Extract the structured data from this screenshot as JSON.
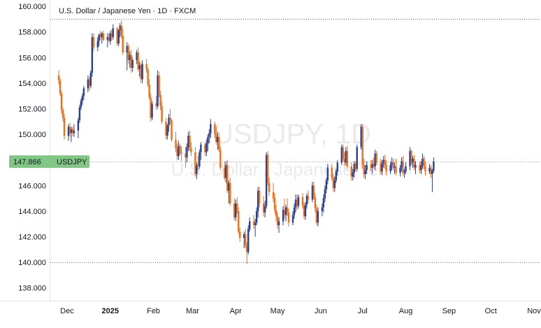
{
  "chart_data": {
    "type": "candlestick",
    "title": "U.S. Dollar / Japanese Yen · 1D · FXCM",
    "watermark_symbol": "USDJPY, 1D",
    "watermark_name": "U.S. Dollar / Japanese Yen",
    "xlabel": "",
    "ylabel": "",
    "ylim": [
      137,
      160.5
    ],
    "xlim": [
      "2024-11-19",
      "2025-11-06"
    ],
    "y_ticks": [
      "160.000",
      "158.000",
      "156.000",
      "154.000",
      "152.000",
      "150.000",
      "148.000",
      "146.000",
      "144.000",
      "142.000",
      "140.000",
      "138.000"
    ],
    "x_ticks": [
      {
        "label": "Dec",
        "date": "2024-12-01",
        "bold": false
      },
      {
        "label": "2025",
        "date": "2025-01-01",
        "bold": true
      },
      {
        "label": "Feb",
        "date": "2025-02-01",
        "bold": false
      },
      {
        "label": "Mar",
        "date": "2025-03-01",
        "bold": false
      },
      {
        "label": "Apr",
        "date": "2025-04-01",
        "bold": false
      },
      {
        "label": "May",
        "date": "2025-05-01",
        "bold": false
      },
      {
        "label": "Jun",
        "date": "2025-06-01",
        "bold": false
      },
      {
        "label": "Jul",
        "date": "2025-07-01",
        "bold": false
      },
      {
        "label": "Aug",
        "date": "2025-08-01",
        "bold": false
      },
      {
        "label": "Sep",
        "date": "2025-09-01",
        "bold": false
      },
      {
        "label": "Oct",
        "date": "2025-10-01",
        "bold": false
      },
      {
        "label": "Nov",
        "date": "2025-11-01",
        "bold": false
      }
    ],
    "grid": "horizontal dotted at 159.0 and 140.0",
    "dotted_levels": [
      159.0,
      140.0
    ],
    "last_price": {
      "label": "USDJPY",
      "value": "147.866",
      "y": 147.866,
      "color": "#81c784"
    },
    "up_color": "#2a3f8f",
    "down_color": "#e8711a",
    "candles": {
      "start": "2024-11-25",
      "values": [
        [
          154.6,
          155.0,
          153.9,
          154.2
        ],
        [
          154.2,
          154.4,
          153.0,
          153.2
        ],
        [
          153.2,
          153.4,
          151.6,
          151.9
        ],
        [
          151.9,
          152.1,
          151.0,
          151.3
        ],
        [
          151.3,
          151.6,
          149.6,
          149.9
        ],
        [
          149.9,
          150.8,
          149.5,
          150.6
        ],
        [
          150.6,
          150.9,
          149.8,
          150.1
        ],
        [
          150.1,
          150.6,
          149.4,
          150.4
        ],
        [
          150.4,
          150.6,
          149.9,
          150.1
        ],
        [
          150.1,
          150.8,
          149.8,
          150.3
        ],
        [
          150.3,
          151.3,
          149.7,
          151.1
        ],
        [
          151.1,
          152.3,
          150.9,
          152.1
        ],
        [
          152.1,
          152.8,
          151.9,
          152.6
        ],
        [
          152.6,
          153.2,
          152.3,
          153.0
        ],
        [
          153.0,
          153.8,
          152.7,
          153.6
        ],
        [
          153.6,
          154.6,
          153.3,
          154.3
        ],
        [
          154.3,
          154.5,
          153.4,
          153.8
        ],
        [
          153.8,
          155.0,
          153.6,
          154.8
        ],
        [
          154.8,
          157.9,
          154.5,
          157.6
        ],
        [
          157.6,
          157.9,
          156.5,
          156.8
        ],
        [
          156.8,
          157.6,
          156.5,
          157.3
        ],
        [
          157.3,
          157.9,
          156.9,
          157.8
        ],
        [
          157.8,
          158.1,
          157.4,
          157.6
        ],
        [
          157.6,
          158.0,
          157.1,
          157.9
        ],
        [
          157.9,
          158.1,
          157.3,
          157.4
        ],
        [
          157.4,
          157.9,
          156.8,
          157.6
        ],
        [
          157.6,
          157.9,
          157.2,
          157.3
        ],
        [
          157.3,
          158.1,
          157.0,
          157.9
        ],
        [
          157.9,
          158.2,
          157.3,
          157.6
        ],
        [
          157.6,
          158.6,
          157.4,
          158.3
        ],
        [
          158.3,
          158.4,
          156.9,
          157.1
        ],
        [
          157.1,
          158.2,
          156.9,
          158.1
        ],
        [
          158.1,
          158.7,
          157.6,
          158.5
        ],
        [
          158.5,
          158.9,
          157.5,
          157.7
        ],
        [
          157.7,
          158.3,
          156.2,
          156.4
        ],
        [
          156.4,
          157.2,
          155.0,
          156.9
        ],
        [
          156.9,
          157.1,
          155.5,
          155.8
        ],
        [
          155.8,
          156.5,
          155.2,
          156.2
        ],
        [
          156.2,
          156.6,
          154.8,
          155.2
        ],
        [
          155.2,
          156.0,
          154.9,
          155.8
        ],
        [
          155.8,
          156.6,
          155.5,
          156.4
        ],
        [
          156.4,
          156.8,
          154.9,
          155.1
        ],
        [
          155.1,
          155.7,
          154.5,
          155.4
        ],
        [
          155.4,
          155.6,
          154.0,
          154.3
        ],
        [
          154.3,
          155.8,
          154.0,
          155.5
        ],
        [
          155.5,
          155.9,
          154.8,
          155.1
        ],
        [
          155.1,
          155.2,
          153.7,
          153.9
        ],
        [
          153.9,
          154.3,
          152.7,
          152.9
        ],
        [
          152.9,
          153.2,
          151.0,
          151.3
        ],
        [
          151.3,
          152.6,
          151.1,
          152.4
        ],
        [
          152.4,
          153.0,
          151.9,
          152.2
        ],
        [
          152.2,
          155.0,
          152.0,
          154.6
        ],
        [
          154.6,
          154.9,
          152.9,
          153.1
        ],
        [
          153.1,
          153.4,
          151.9,
          152.2
        ],
        [
          152.2,
          152.6,
          150.8,
          151.0
        ],
        [
          151.0,
          151.3,
          149.6,
          149.9
        ],
        [
          149.9,
          150.8,
          149.6,
          150.7
        ],
        [
          150.7,
          151.6,
          150.2,
          151.3
        ],
        [
          151.3,
          152.0,
          150.8,
          151.1
        ],
        [
          151.1,
          151.2,
          149.4,
          149.6
        ],
        [
          149.6,
          150.2,
          148.6,
          148.9
        ],
        [
          148.9,
          149.3,
          148.0,
          148.3
        ],
        [
          148.3,
          149.5,
          148.0,
          149.1
        ],
        [
          149.1,
          149.3,
          148.4,
          148.6
        ],
        [
          148.6,
          149.1,
          147.9,
          148.5
        ],
        [
          148.5,
          149.0,
          147.4,
          148.2
        ],
        [
          148.2,
          149.3,
          147.8,
          149.0
        ],
        [
          149.0,
          150.2,
          148.7,
          149.9
        ],
        [
          149.9,
          150.3,
          148.7,
          148.9
        ],
        [
          148.9,
          149.4,
          148.3,
          148.6
        ],
        [
          148.6,
          149.0,
          146.7,
          146.9
        ],
        [
          146.9,
          147.8,
          146.5,
          147.6
        ],
        [
          147.6,
          148.3,
          147.2,
          147.5
        ],
        [
          147.5,
          148.8,
          147.3,
          148.6
        ],
        [
          148.6,
          149.4,
          148.0,
          149.2
        ],
        [
          149.2,
          149.4,
          148.3,
          148.6
        ],
        [
          148.6,
          149.6,
          148.3,
          149.3
        ],
        [
          149.3,
          150.0,
          148.7,
          149.8
        ],
        [
          149.8,
          150.4,
          149.3,
          150.1
        ],
        [
          150.1,
          151.2,
          149.7,
          150.8
        ],
        [
          150.8,
          151.0,
          149.7,
          150.0
        ],
        [
          150.0,
          150.6,
          149.2,
          149.4
        ],
        [
          149.4,
          150.2,
          148.8,
          149.8
        ],
        [
          149.8,
          150.1,
          148.6,
          148.8
        ],
        [
          148.8,
          149.1,
          147.2,
          147.4
        ],
        [
          147.4,
          147.9,
          146.4,
          146.6
        ],
        [
          146.6,
          147.9,
          146.2,
          147.6
        ],
        [
          147.6,
          148.0,
          145.4,
          145.6
        ],
        [
          145.6,
          146.4,
          144.6,
          146.2
        ],
        [
          146.2,
          146.6,
          144.4,
          144.6
        ],
        [
          144.6,
          145.0,
          143.3,
          143.5
        ],
        [
          143.5,
          144.9,
          143.2,
          144.6
        ],
        [
          144.6,
          145.1,
          143.8,
          144.0
        ],
        [
          144.0,
          144.3,
          142.2,
          142.4
        ],
        [
          142.4,
          142.7,
          141.6,
          141.9
        ],
        [
          141.9,
          142.4,
          141.1,
          142.2
        ],
        [
          142.2,
          142.6,
          141.1,
          141.3
        ],
        [
          141.3,
          141.6,
          139.9,
          140.8
        ],
        [
          140.8,
          142.9,
          140.6,
          142.6
        ],
        [
          142.6,
          143.5,
          142.4,
          143.2
        ],
        [
          143.2,
          143.7,
          142.6,
          142.9
        ],
        [
          142.9,
          143.4,
          142.0,
          143.1
        ],
        [
          143.1,
          144.3,
          142.9,
          144.0
        ],
        [
          144.0,
          145.9,
          143.5,
          145.6
        ],
        [
          145.6,
          145.9,
          144.3,
          144.6
        ],
        [
          144.6,
          145.2,
          143.6,
          143.9
        ],
        [
          143.9,
          144.8,
          143.5,
          144.4
        ],
        [
          144.4,
          148.6,
          144.2,
          148.4
        ],
        [
          148.4,
          148.7,
          146.0,
          146.2
        ],
        [
          146.2,
          146.6,
          145.2,
          145.5
        ],
        [
          145.5,
          146.2,
          144.7,
          145.0
        ],
        [
          145.0,
          145.4,
          143.8,
          144.1
        ],
        [
          144.1,
          144.5,
          143.2,
          143.6
        ],
        [
          143.6,
          143.9,
          142.6,
          142.9
        ],
        [
          142.9,
          143.5,
          142.3,
          143.2
        ],
        [
          143.2,
          144.4,
          142.9,
          144.1
        ],
        [
          144.1,
          145.0,
          143.4,
          143.7
        ],
        [
          143.7,
          144.5,
          143.2,
          144.3
        ],
        [
          144.3,
          145.0,
          143.6,
          143.9
        ],
        [
          143.9,
          144.2,
          142.8,
          143.1
        ],
        [
          143.1,
          144.0,
          142.9,
          143.7
        ],
        [
          143.7,
          144.6,
          143.4,
          144.3
        ],
        [
          144.3,
          145.3,
          143.9,
          144.9
        ],
        [
          144.9,
          145.3,
          144.1,
          144.4
        ],
        [
          144.4,
          145.3,
          144.2,
          145.1
        ],
        [
          145.1,
          145.4,
          144.2,
          144.4
        ],
        [
          144.4,
          144.7,
          143.4,
          143.6
        ],
        [
          143.6,
          144.7,
          143.3,
          144.5
        ],
        [
          144.5,
          145.4,
          144.2,
          145.2
        ],
        [
          145.2,
          145.6,
          144.6,
          144.9
        ],
        [
          144.9,
          146.3,
          144.7,
          146.0
        ],
        [
          146.0,
          146.3,
          144.9,
          145.1
        ],
        [
          145.1,
          145.4,
          143.9,
          144.2
        ],
        [
          144.2,
          144.5,
          142.9,
          143.1
        ],
        [
          143.1,
          144.3,
          142.8,
          144.0
        ],
        [
          144.0,
          144.6,
          143.6,
          144.3
        ],
        [
          144.3,
          145.3,
          143.9,
          145.0
        ],
        [
          145.0,
          146.0,
          144.7,
          145.7
        ],
        [
          145.7,
          146.6,
          145.4,
          146.4
        ],
        [
          146.4,
          147.7,
          146.1,
          147.4
        ],
        [
          147.4,
          147.7,
          146.4,
          146.6
        ],
        [
          146.6,
          146.9,
          145.5,
          145.8
        ],
        [
          145.8,
          146.7,
          145.5,
          146.4
        ],
        [
          146.4,
          147.3,
          146.2,
          147.1
        ],
        [
          147.1,
          148.0,
          146.8,
          147.8
        ],
        [
          147.8,
          149.2,
          147.6,
          149.0
        ],
        [
          149.0,
          149.2,
          147.9,
          148.1
        ],
        [
          148.1,
          148.6,
          147.5,
          147.8
        ],
        [
          147.8,
          149.0,
          147.6,
          148.7
        ],
        [
          148.7,
          149.1,
          147.3,
          147.5
        ],
        [
          147.5,
          147.8,
          146.4,
          146.7
        ],
        [
          146.7,
          147.3,
          146.4,
          147.0
        ],
        [
          147.0,
          147.9,
          146.6,
          147.7
        ],
        [
          147.7,
          147.9,
          147.1,
          147.3
        ],
        [
          147.3,
          149.2,
          147.1,
          149.0
        ],
        [
          149.0,
          150.8,
          148.8,
          150.6
        ],
        [
          150.6,
          150.8,
          147.3,
          147.6
        ],
        [
          147.6,
          148.1,
          146.6,
          146.9
        ],
        [
          146.9,
          147.6,
          146.5,
          147.2
        ],
        [
          147.2,
          147.9,
          146.9,
          147.6
        ],
        [
          147.6,
          148.0,
          147.1,
          147.4
        ],
        [
          147.4,
          148.0,
          146.9,
          147.7
        ],
        [
          147.7,
          148.2,
          147.3,
          147.5
        ],
        [
          147.5,
          148.8,
          147.2,
          148.5
        ],
        [
          148.5,
          148.7,
          147.6,
          147.8
        ],
        [
          147.8,
          148.1,
          146.9,
          147.1
        ],
        [
          147.1,
          148.0,
          146.8,
          147.7
        ],
        [
          147.7,
          148.3,
          147.4,
          148.0
        ],
        [
          148.0,
          148.4,
          147.3,
          147.6
        ],
        [
          147.6,
          148.0,
          146.8,
          147.1
        ],
        [
          147.1,
          147.9,
          146.9,
          147.6
        ],
        [
          147.6,
          148.2,
          147.2,
          147.8
        ],
        [
          147.8,
          148.1,
          147.2,
          147.4
        ],
        [
          147.4,
          147.8,
          146.9,
          147.5
        ],
        [
          147.5,
          148.1,
          146.8,
          147.0
        ],
        [
          147.0,
          147.6,
          146.7,
          147.4
        ],
        [
          147.4,
          148.2,
          147.1,
          147.9
        ],
        [
          147.9,
          148.3,
          146.8,
          147.0
        ],
        [
          147.0,
          147.3,
          146.6,
          147.1
        ],
        [
          147.1,
          147.8,
          146.9,
          147.5
        ],
        [
          147.5,
          149.0,
          147.2,
          148.7
        ],
        [
          148.7,
          148.8,
          147.6,
          147.8
        ],
        [
          147.8,
          148.3,
          147.4,
          148.1
        ],
        [
          148.1,
          148.4,
          147.2,
          147.4
        ],
        [
          147.4,
          147.9,
          146.9,
          147.6
        ],
        [
          147.6,
          147.9,
          147.0,
          147.2
        ],
        [
          147.2,
          147.9,
          146.9,
          147.6
        ],
        [
          147.6,
          148.5,
          147.3,
          148.1
        ],
        [
          148.1,
          148.3,
          147.3,
          147.5
        ],
        [
          147.5,
          147.9,
          146.8,
          147.1
        ],
        [
          147.1,
          147.7,
          146.9,
          147.4
        ],
        [
          147.4,
          147.6,
          146.6,
          146.9
        ],
        [
          146.9,
          147.3,
          145.5,
          147.2
        ],
        [
          147.2,
          148.2,
          147.0,
          147.866
        ]
      ]
    }
  }
}
